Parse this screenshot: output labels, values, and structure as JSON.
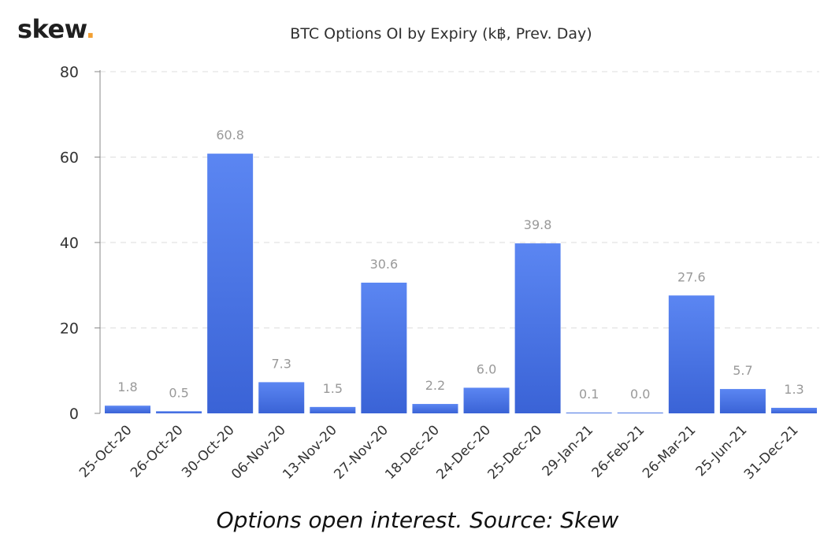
{
  "brand": {
    "name": "skew",
    "dot": ".",
    "dot_color": "#f2a033"
  },
  "caption": "Options open interest. Source: Skew",
  "colors": {
    "bar_top": "#5b86f2",
    "bar_bottom": "#3a63d6",
    "gridline": "#dddddd",
    "value_label": "#999999",
    "axis_text": "#333333"
  },
  "chart_data": {
    "type": "bar",
    "title": "BTC Options OI by Expiry (k฿, Prev. Day)",
    "xlabel": "",
    "ylabel": "",
    "ylim": [
      0,
      80
    ],
    "yticks": [
      0,
      20,
      40,
      60,
      80
    ],
    "grid": true,
    "categories": [
      "25-Oct-20",
      "26-Oct-20",
      "30-Oct-20",
      "06-Nov-20",
      "13-Nov-20",
      "27-Nov-20",
      "18-Dec-20",
      "24-Dec-20",
      "25-Dec-20",
      "29-Jan-21",
      "26-Feb-21",
      "26-Mar-21",
      "25-Jun-21",
      "31-Dec-21"
    ],
    "values": [
      1.8,
      0.5,
      60.8,
      7.3,
      1.5,
      30.6,
      2.2,
      6.0,
      39.8,
      0.1,
      0.0,
      27.6,
      5.7,
      1.3
    ],
    "value_labels": [
      "1.8",
      "0.5",
      "60.8",
      "7.3",
      "1.5",
      "30.6",
      "2.2",
      "6.0",
      "39.8",
      "0.1",
      "0.0",
      "27.6",
      "5.7",
      "1.3"
    ]
  }
}
